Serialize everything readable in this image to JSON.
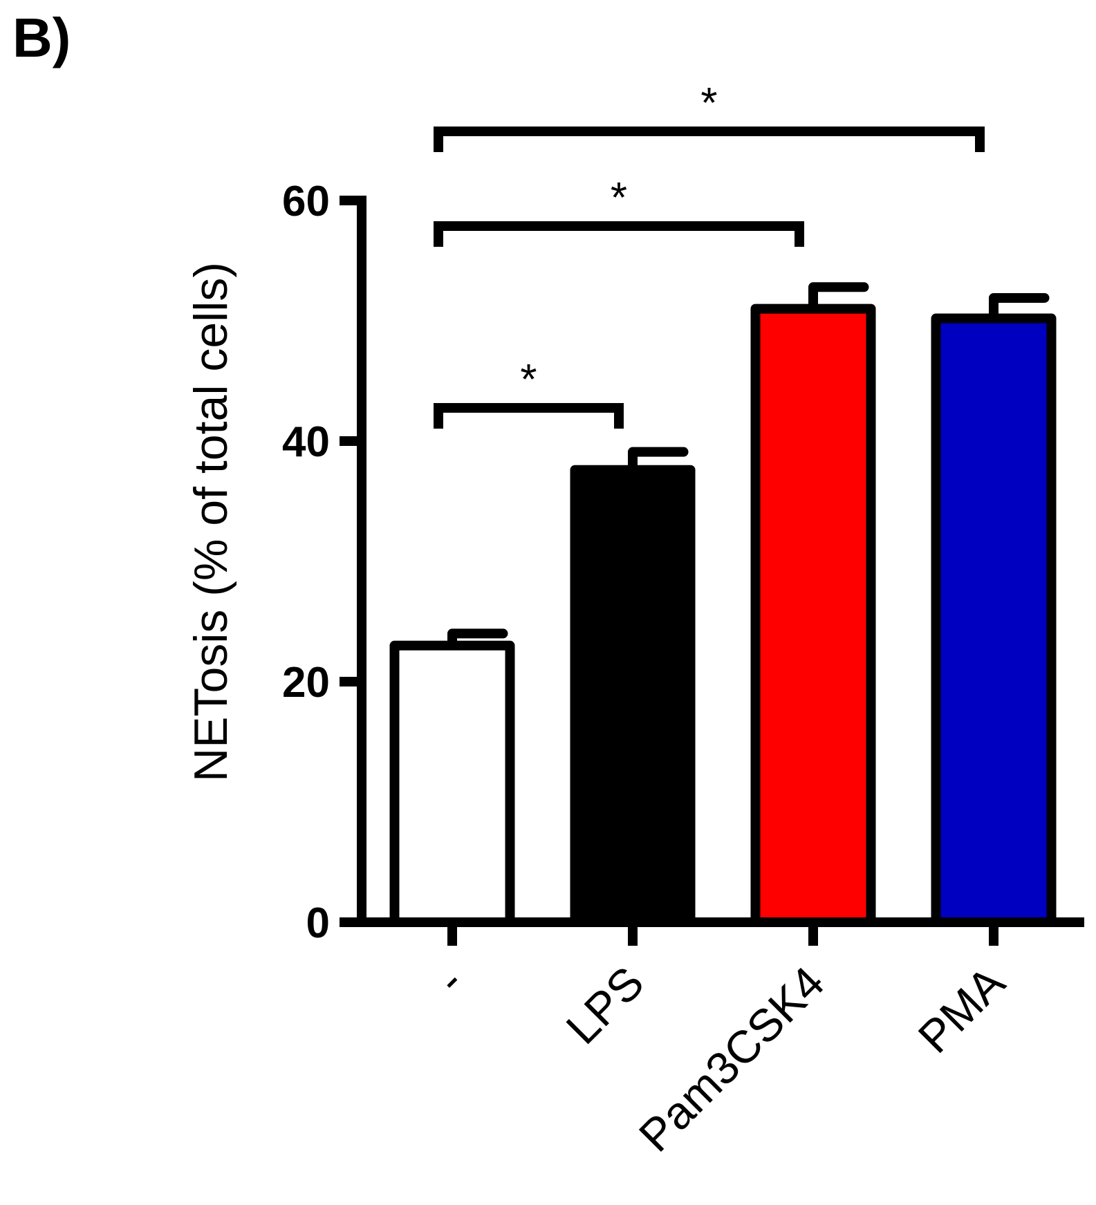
{
  "panel_label": "B)",
  "chart_data": {
    "type": "bar",
    "categories": [
      "-",
      "LPS",
      "Pam3CSK4",
      "PMA"
    ],
    "values": [
      23,
      37.6,
      51,
      50.2
    ],
    "errors": [
      1,
      1.5,
      1.8,
      1.7
    ],
    "colors": [
      "#ffffff",
      "#000000",
      "#ff0000",
      "#0000c0"
    ],
    "ylabel": "NETosis (% of total cells)",
    "xlabel": "",
    "ylim": [
      0,
      60
    ],
    "yticks": [
      0,
      20,
      40,
      60
    ],
    "grid": false,
    "significance": [
      {
        "from": "-",
        "to": "LPS",
        "label": "*"
      },
      {
        "from": "-",
        "to": "Pam3CSK4",
        "label": "*"
      },
      {
        "from": "-",
        "to": "PMA",
        "label": "*"
      }
    ]
  }
}
